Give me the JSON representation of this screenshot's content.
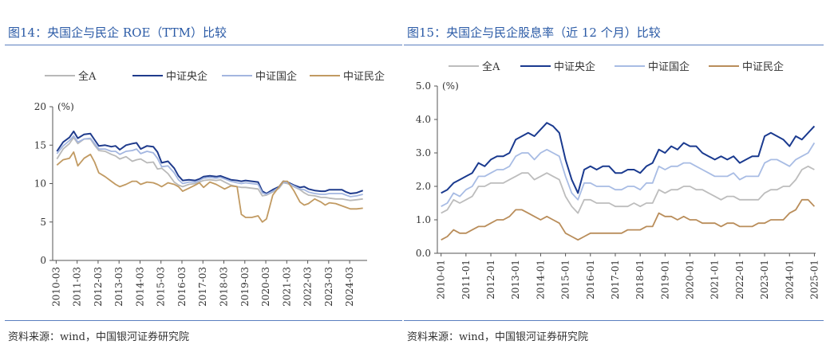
{
  "charts": [
    {
      "title": "图14：央国企与民企 ROE（TTM）比较",
      "source": "资料来源：wind，中国银河证券研究院"
    },
    {
      "title": "图15：央国企与民企股息率（近 12 个月）比较",
      "source": "资料来源：wind，中国银河证券研究院"
    }
  ],
  "chart_data": [
    {
      "type": "line",
      "ylabel": "(%)",
      "ylim": [
        0,
        20
      ],
      "yticks": [
        0,
        5,
        10,
        15,
        20
      ],
      "xlim": [
        2010.0,
        2025.0
      ],
      "xtick_labels": [
        "2010-03",
        "2011-03",
        "2012-03",
        "2013-03",
        "2014-03",
        "2015-03",
        "2016-03",
        "2017-03",
        "2018-03",
        "2019-03",
        "2020-03",
        "2021-03",
        "2022-03",
        "2023-03",
        "2024-03"
      ],
      "legend_position": "top",
      "grid": false,
      "x": [
        2010.2,
        2010.5,
        2010.8,
        2011.0,
        2011.2,
        2011.5,
        2011.8,
        2012.0,
        2012.2,
        2012.5,
        2012.8,
        2013.0,
        2013.2,
        2013.5,
        2013.8,
        2014.0,
        2014.2,
        2014.5,
        2014.8,
        2015.0,
        2015.2,
        2015.5,
        2015.8,
        2016.0,
        2016.2,
        2016.5,
        2016.8,
        2017.0,
        2017.2,
        2017.5,
        2017.8,
        2018.0,
        2018.2,
        2018.5,
        2018.8,
        2019.0,
        2019.2,
        2019.5,
        2019.8,
        2020.0,
        2020.2,
        2020.5,
        2020.8,
        2021.0,
        2021.2,
        2021.5,
        2021.8,
        2022.0,
        2022.2,
        2022.5,
        2022.8,
        2023.0,
        2023.2,
        2023.5,
        2023.8,
        2024.0,
        2024.2,
        2024.5,
        2024.8
      ],
      "series": [
        {
          "name": "全A",
          "color": "#b9b9b9",
          "values": [
            13.2,
            14.5,
            15.2,
            16.0,
            15.2,
            15.8,
            15.8,
            15.0,
            14.3,
            14.2,
            13.8,
            13.6,
            13.2,
            13.5,
            12.9,
            13.1,
            13.2,
            12.7,
            12.8,
            11.9,
            12.0,
            11.3,
            10.2,
            9.8,
            9.6,
            9.9,
            10.0,
            10.2,
            10.4,
            10.5,
            10.4,
            10.5,
            10.2,
            9.8,
            9.6,
            9.5,
            9.5,
            9.4,
            9.3,
            8.4,
            8.5,
            8.9,
            9.4,
            10.1,
            10.0,
            9.6,
            9.2,
            8.8,
            8.5,
            8.4,
            8.2,
            8.2,
            8.1,
            8.0,
            8.0,
            7.9,
            7.8,
            7.9,
            8.0
          ]
        },
        {
          "name": "中证央企",
          "color": "#1f3b8c",
          "values": [
            14.2,
            15.4,
            16.0,
            16.8,
            15.9,
            16.4,
            16.5,
            15.7,
            14.9,
            15.0,
            14.8,
            14.9,
            14.4,
            15.0,
            15.2,
            15.3,
            14.5,
            14.9,
            14.8,
            14.1,
            12.7,
            12.9,
            12.0,
            11.0,
            10.4,
            10.5,
            10.4,
            10.6,
            10.9,
            11.0,
            10.9,
            11.0,
            10.8,
            10.5,
            10.4,
            10.3,
            10.4,
            10.3,
            10.2,
            9.0,
            8.7,
            9.2,
            9.6,
            10.3,
            10.2,
            9.8,
            9.5,
            9.6,
            9.3,
            9.1,
            9.0,
            9.0,
            9.2,
            9.2,
            9.2,
            8.9,
            8.7,
            8.8,
            9.1
          ]
        },
        {
          "name": "中证国企",
          "color": "#a3b6e0",
          "values": [
            13.9,
            14.9,
            15.6,
            16.2,
            15.4,
            15.8,
            15.9,
            15.2,
            14.5,
            14.5,
            14.2,
            14.2,
            13.8,
            14.2,
            14.3,
            14.5,
            13.9,
            14.2,
            14.0,
            13.3,
            12.2,
            12.3,
            11.4,
            10.5,
            10.0,
            10.2,
            10.2,
            10.4,
            10.7,
            10.8,
            10.7,
            10.8,
            10.6,
            10.3,
            10.1,
            10.0,
            10.1,
            10.0,
            9.9,
            8.8,
            8.6,
            9.0,
            9.5,
            10.2,
            10.1,
            9.7,
            9.3,
            9.2,
            8.9,
            8.7,
            8.6,
            8.6,
            8.7,
            8.7,
            8.7,
            8.5,
            8.3,
            8.4,
            8.6
          ]
        },
        {
          "name": "中证民企",
          "color": "#c19a62",
          "values": [
            12.4,
            13.1,
            13.3,
            14.1,
            12.3,
            13.3,
            13.8,
            12.8,
            11.4,
            10.9,
            10.3,
            9.9,
            9.6,
            9.9,
            10.3,
            10.3,
            9.9,
            10.2,
            10.1,
            9.9,
            9.6,
            10.1,
            9.9,
            9.6,
            9.0,
            9.4,
            9.8,
            10.1,
            9.5,
            10.2,
            9.9,
            9.6,
            9.3,
            9.7,
            9.6,
            6.0,
            5.6,
            5.6,
            5.8,
            5.0,
            5.4,
            8.5,
            9.6,
            10.3,
            10.3,
            9.1,
            7.6,
            7.2,
            7.4,
            8.0,
            7.6,
            7.2,
            7.5,
            7.4,
            7.1,
            6.9,
            6.7,
            6.7,
            6.8
          ]
        }
      ]
    },
    {
      "type": "line",
      "ylabel": "(%)",
      "ylim": [
        0.0,
        5.0
      ],
      "yticks": [
        "0.0",
        "1.0",
        "2.0",
        "3.0",
        "4.0",
        "5.0"
      ],
      "xlim": [
        2009.85,
        2025.05
      ],
      "xtick_labels": [
        "2010-01",
        "2011-01",
        "2012-01",
        "2013-01",
        "2014-01",
        "2015-01",
        "2016-01",
        "2017-01",
        "2018-01",
        "2019-01",
        "2020-01",
        "2021-01",
        "2022-01",
        "2023-01",
        "2024-01",
        "2025-01"
      ],
      "legend_position": "top",
      "grid": false,
      "x": [
        2010.0,
        2010.25,
        2010.5,
        2010.75,
        2011.0,
        2011.25,
        2011.5,
        2011.75,
        2012.0,
        2012.25,
        2012.5,
        2012.75,
        2013.0,
        2013.25,
        2013.5,
        2013.75,
        2014.0,
        2014.25,
        2014.5,
        2014.75,
        2015.0,
        2015.25,
        2015.5,
        2015.75,
        2016.0,
        2016.25,
        2016.5,
        2016.75,
        2017.0,
        2017.25,
        2017.5,
        2017.75,
        2018.0,
        2018.25,
        2018.5,
        2018.75,
        2019.0,
        2019.25,
        2019.5,
        2019.75,
        2020.0,
        2020.25,
        2020.5,
        2020.75,
        2021.0,
        2021.25,
        2021.5,
        2021.75,
        2022.0,
        2022.25,
        2022.5,
        2022.75,
        2023.0,
        2023.25,
        2023.5,
        2023.75,
        2024.0,
        2024.25,
        2024.5,
        2024.75,
        2025.0
      ],
      "series": [
        {
          "name": "全A",
          "color": "#bdbdbd",
          "values": [
            1.2,
            1.3,
            1.6,
            1.5,
            1.6,
            1.7,
            2.0,
            2.0,
            2.1,
            2.1,
            2.1,
            2.2,
            2.3,
            2.4,
            2.4,
            2.2,
            2.3,
            2.4,
            2.3,
            2.2,
            1.7,
            1.4,
            1.2,
            1.6,
            1.6,
            1.5,
            1.5,
            1.5,
            1.4,
            1.4,
            1.4,
            1.5,
            1.4,
            1.5,
            1.5,
            1.9,
            1.8,
            1.9,
            1.9,
            2.0,
            2.0,
            1.9,
            1.9,
            1.8,
            1.7,
            1.6,
            1.7,
            1.7,
            1.6,
            1.6,
            1.6,
            1.6,
            1.8,
            1.9,
            1.9,
            2.0,
            2.0,
            2.2,
            2.5,
            2.6,
            2.5
          ]
        },
        {
          "name": "中证央企",
          "color": "#1a3a8f",
          "values": [
            1.8,
            1.9,
            2.1,
            2.2,
            2.3,
            2.4,
            2.7,
            2.6,
            2.8,
            2.9,
            2.9,
            3.0,
            3.4,
            3.5,
            3.6,
            3.5,
            3.7,
            3.9,
            3.8,
            3.6,
            2.8,
            2.2,
            1.8,
            2.5,
            2.6,
            2.5,
            2.6,
            2.6,
            2.4,
            2.4,
            2.5,
            2.5,
            2.4,
            2.6,
            2.7,
            3.1,
            3.0,
            3.2,
            3.1,
            3.3,
            3.2,
            3.2,
            3.0,
            2.9,
            2.8,
            2.9,
            2.8,
            2.9,
            2.7,
            2.8,
            2.9,
            2.9,
            3.5,
            3.6,
            3.5,
            3.4,
            3.2,
            3.5,
            3.4,
            3.6,
            3.8
          ]
        },
        {
          "name": "中证国企",
          "color": "#a8bce4",
          "values": [
            1.4,
            1.5,
            1.8,
            1.7,
            1.9,
            2.0,
            2.3,
            2.3,
            2.4,
            2.5,
            2.5,
            2.6,
            2.9,
            3.0,
            3.0,
            2.8,
            3.0,
            3.1,
            3.0,
            2.9,
            2.3,
            1.8,
            1.6,
            2.1,
            2.1,
            2.0,
            2.0,
            2.0,
            1.9,
            1.9,
            2.0,
            2.0,
            1.9,
            2.1,
            2.1,
            2.6,
            2.5,
            2.6,
            2.6,
            2.7,
            2.7,
            2.6,
            2.5,
            2.4,
            2.3,
            2.3,
            2.3,
            2.4,
            2.2,
            2.3,
            2.3,
            2.3,
            2.7,
            2.8,
            2.8,
            2.7,
            2.6,
            2.8,
            2.9,
            3.0,
            3.3
          ]
        },
        {
          "name": "中证民企",
          "color": "#b98d5a",
          "values": [
            0.4,
            0.5,
            0.7,
            0.6,
            0.6,
            0.7,
            0.8,
            0.8,
            0.9,
            1.0,
            1.0,
            1.1,
            1.3,
            1.3,
            1.2,
            1.1,
            1.0,
            1.1,
            1.0,
            0.9,
            0.6,
            0.5,
            0.4,
            0.5,
            0.6,
            0.6,
            0.6,
            0.6,
            0.6,
            0.6,
            0.7,
            0.7,
            0.7,
            0.8,
            0.8,
            1.2,
            1.1,
            1.1,
            1.0,
            1.1,
            1.0,
            1.0,
            0.9,
            0.9,
            0.9,
            0.8,
            0.9,
            0.9,
            0.8,
            0.8,
            0.8,
            0.9,
            0.9,
            1.0,
            1.0,
            1.0,
            1.2,
            1.3,
            1.6,
            1.6,
            1.4
          ]
        }
      ]
    }
  ]
}
